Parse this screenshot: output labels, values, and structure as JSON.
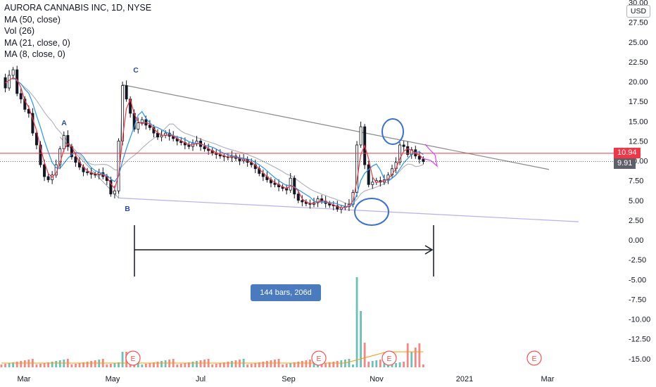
{
  "legend": {
    "title": "AURORA CANNABIS INC, 1D, NYSE",
    "lines": [
      "MA (50, close)",
      "Vol (26)",
      "MA (21, close, 0)",
      "MA (8, close, 0)"
    ]
  },
  "currency": "USD",
  "last_price_label": "10.94",
  "close_price_label": "9.91",
  "range_label": "144 bars, 206d",
  "abc_labels": [
    "A",
    "B",
    "C"
  ],
  "event_marker_label": "E",
  "colors": {
    "up_candle": "#131722",
    "down_candle": "#131722",
    "ma50": "#b2b5be",
    "ma21": "#2196f3",
    "ma8": "#f23645",
    "hline": "#f23645",
    "trendline_top": "#8a8a8a",
    "trendline_bottom": "#b7b0f0",
    "circle": "#3a6fd8",
    "volume_up": "#26a69a",
    "volume_down": "#ef5350",
    "vol_ma": "#ff9800",
    "range_box": "#4a7bc0"
  },
  "chart_data": {
    "type": "candlestick",
    "title": "AURORA CANNABIS INC, 1D, NYSE",
    "x_ticks": [
      "Mar",
      "May",
      "Jul",
      "Sep",
      "Nov",
      "2021",
      "Mar"
    ],
    "y_ticks": [
      30,
      27.5,
      25,
      22.5,
      20,
      17.5,
      15,
      12.5,
      10,
      7.5,
      5,
      2.5,
      0,
      -2.5,
      -5,
      -7.5,
      -10,
      -12.5,
      -15
    ],
    "y_tick_labels": [
      "30.00",
      "27.50",
      "25.00",
      "22.50",
      "20.00",
      "17.50",
      "15.00",
      "12.50",
      "10.00",
      "7.50",
      "5.00",
      "2.50",
      "0.00",
      "-2.50",
      "-5.00",
      "-7.50",
      "-10.00",
      "-12.50",
      "-15.00"
    ],
    "ylim": [
      -16.2,
      30.2
    ],
    "horizontal_line": 10.94,
    "last_close": 9.91,
    "price_path": [
      [
        0,
        20.5
      ],
      [
        1,
        19.2
      ],
      [
        2,
        20.8
      ],
      [
        3,
        21.5
      ],
      [
        4,
        18.5
      ],
      [
        5,
        17.8
      ],
      [
        6,
        16.5
      ],
      [
        7,
        16.0
      ],
      [
        8,
        13.5
      ],
      [
        9,
        12.0
      ],
      [
        10,
        9.5
      ],
      [
        11,
        8.0
      ],
      [
        12,
        7.6
      ],
      [
        13,
        8.2
      ],
      [
        14,
        9.5
      ],
      [
        15,
        11.5
      ],
      [
        16,
        13.2
      ],
      [
        17,
        11.8
      ],
      [
        18,
        10.5
      ],
      [
        19,
        9.8
      ],
      [
        20,
        9.2
      ],
      [
        21,
        8.6
      ],
      [
        22,
        8.5
      ],
      [
        23,
        8.3
      ],
      [
        24,
        8.2
      ],
      [
        25,
        8.5
      ],
      [
        26,
        8.0
      ],
      [
        27,
        7.5
      ],
      [
        28,
        5.8
      ],
      [
        29,
        6.2
      ],
      [
        30,
        12.5
      ],
      [
        31,
        19.5
      ],
      [
        32,
        17.8
      ],
      [
        33,
        16.0
      ],
      [
        34,
        14.0
      ],
      [
        35,
        14.8
      ],
      [
        36,
        15.2
      ],
      [
        37,
        14.5
      ],
      [
        38,
        14.2
      ],
      [
        39,
        13.5
      ],
      [
        40,
        13.0
      ],
      [
        41,
        13.2
      ],
      [
        42,
        13.5
      ],
      [
        43,
        13.1
      ],
      [
        44,
        12.8
      ],
      [
        45,
        12.5
      ],
      [
        46,
        12.3
      ],
      [
        47,
        12.0
      ],
      [
        48,
        11.8
      ],
      [
        49,
        12.2
      ],
      [
        50,
        12.5
      ],
      [
        51,
        11.8
      ],
      [
        52,
        11.5
      ],
      [
        53,
        11.3
      ],
      [
        54,
        11.0
      ],
      [
        55,
        10.8
      ],
      [
        56,
        10.6
      ],
      [
        57,
        10.5
      ],
      [
        58,
        10.4
      ],
      [
        59,
        10.6
      ],
      [
        60,
        10.3
      ],
      [
        61,
        10.0
      ],
      [
        62,
        10.2
      ],
      [
        63,
        9.8
      ],
      [
        64,
        9.5
      ],
      [
        65,
        9.0
      ],
      [
        66,
        8.4
      ],
      [
        67,
        8.0
      ],
      [
        68,
        7.6
      ],
      [
        69,
        7.2
      ],
      [
        70,
        7.0
      ],
      [
        71,
        6.7
      ],
      [
        72,
        6.5
      ],
      [
        73,
        6.3
      ],
      [
        74,
        7.8
      ],
      [
        75,
        5.8
      ],
      [
        76,
        5.0
      ],
      [
        77,
        4.8
      ],
      [
        78,
        4.6
      ],
      [
        79,
        4.5
      ],
      [
        80,
        4.7
      ],
      [
        81,
        5.2
      ],
      [
        82,
        4.9
      ],
      [
        83,
        4.6
      ],
      [
        84,
        4.4
      ],
      [
        85,
        4.3
      ],
      [
        86,
        3.9
      ],
      [
        87,
        4.1
      ],
      [
        88,
        4.2
      ],
      [
        89,
        4.5
      ],
      [
        90,
        6.0
      ],
      [
        91,
        12.0
      ],
      [
        92,
        14.3
      ],
      [
        93,
        9.5
      ],
      [
        94,
        7.0
      ],
      [
        95,
        7.3
      ],
      [
        96,
        7.5
      ],
      [
        97,
        7.3
      ],
      [
        98,
        7.6
      ],
      [
        99,
        8.2
      ],
      [
        100,
        9.0
      ],
      [
        101,
        9.8
      ],
      [
        102,
        12.0
      ],
      [
        103,
        11.8
      ],
      [
        104,
        10.8
      ],
      [
        105,
        11.4
      ],
      [
        106,
        10.6
      ],
      [
        107,
        10.2
      ],
      [
        108,
        9.91
      ]
    ],
    "annotations": {
      "A": {
        "bar": 15,
        "price": 13.8
      },
      "B": {
        "bar": 30,
        "price": 4.0
      },
      "C": {
        "bar": 31,
        "price": 21.0
      },
      "range_bars": 144,
      "range_days": 206
    },
    "volume_spike_bar": 91
  }
}
